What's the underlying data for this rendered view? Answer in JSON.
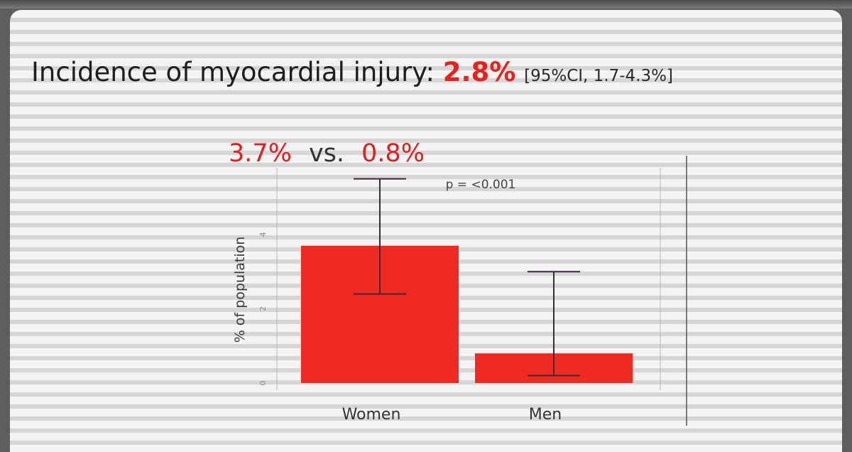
{
  "slide": {
    "title_prefix": "Incidence of myocardial injury:",
    "title_value": "2.8%",
    "title_ci": "[95%CI, 1.7-4.3%]",
    "comparison_left": "3.7%",
    "comparison_vs": "vs.",
    "comparison_right": "0.8%"
  },
  "chart_data": {
    "type": "bar",
    "title": "",
    "xlabel": "",
    "ylabel": "% of population",
    "categories": [
      "Women",
      "Men"
    ],
    "values": [
      3.7,
      0.8
    ],
    "error_low": [
      2.4,
      0.2
    ],
    "error_high": [
      5.5,
      3.0
    ],
    "ylim": [
      0,
      5.8
    ],
    "yticks": [
      "0",
      "2",
      "4"
    ],
    "annotation": "p = <0.001",
    "bar_color": "#ef2a20",
    "error_color": "#3b2a3a",
    "grid": false,
    "legend": "none"
  }
}
